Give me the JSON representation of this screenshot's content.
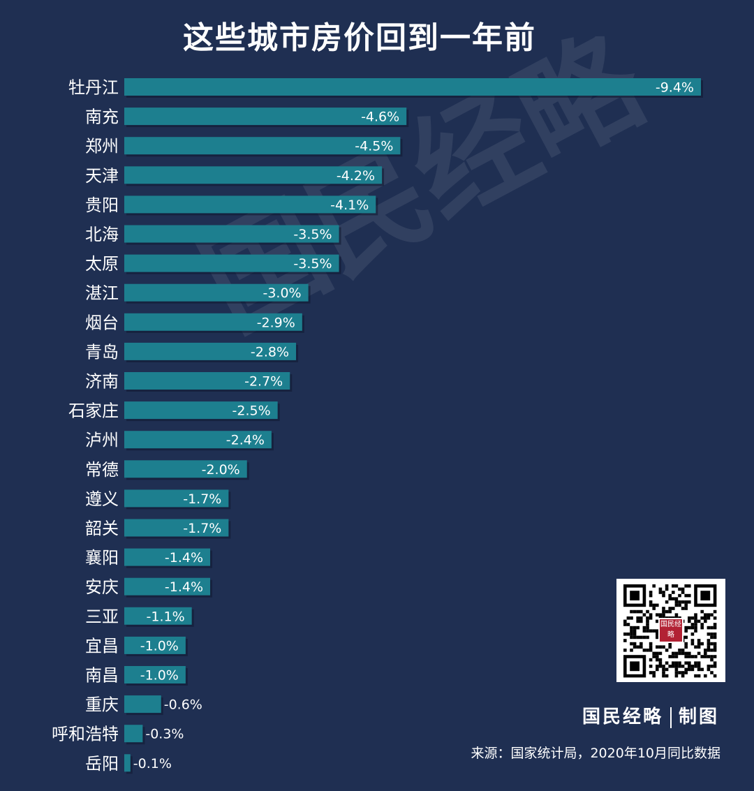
{
  "title": "这些城市房价回到一年前",
  "watermark": "国民经略",
  "brand": {
    "name": "国民经略",
    "suffix": "制图"
  },
  "source": "来源：国家统计局，2020年10月同比数据",
  "qr": {
    "logo_text": "国民经略"
  },
  "colors": {
    "background": "#1f2f52",
    "bar": "#1d7f8f",
    "text": "#ffffff"
  },
  "chart_data": {
    "type": "bar",
    "orientation": "horizontal",
    "categories": [
      "牡丹江",
      "南充",
      "郑州",
      "天津",
      "贵阳",
      "北海",
      "太原",
      "湛江",
      "烟台",
      "青岛",
      "济南",
      "石家庄",
      "泸州",
      "常德",
      "遵义",
      "韶关",
      "襄阳",
      "安庆",
      "三亚",
      "宜昌",
      "南昌",
      "重庆",
      "呼和浩特",
      "岳阳"
    ],
    "values": [
      -9.4,
      -4.6,
      -4.5,
      -4.2,
      -4.1,
      -3.5,
      -3.5,
      -3.0,
      -2.9,
      -2.8,
      -2.7,
      -2.5,
      -2.4,
      -2.0,
      -1.7,
      -1.7,
      -1.4,
      -1.4,
      -1.1,
      -1.0,
      -1.0,
      -0.6,
      -0.3,
      -0.1
    ],
    "labels": [
      "-9.4%",
      "-4.6%",
      "-4.5%",
      "-4.2%",
      "-4.1%",
      "-3.5%",
      "-3.5%",
      "-3.0%",
      "-2.9%",
      "-2.8%",
      "-2.7%",
      "-2.5%",
      "-2.4%",
      "-2.0%",
      "-1.7%",
      "-1.7%",
      "-1.4%",
      "-1.4%",
      "-1.1%",
      "-1.0%",
      "-1.0%",
      "-0.6%",
      "-0.3%",
      "-0.1%"
    ],
    "unit": "%",
    "grid": false,
    "legend": "none"
  }
}
